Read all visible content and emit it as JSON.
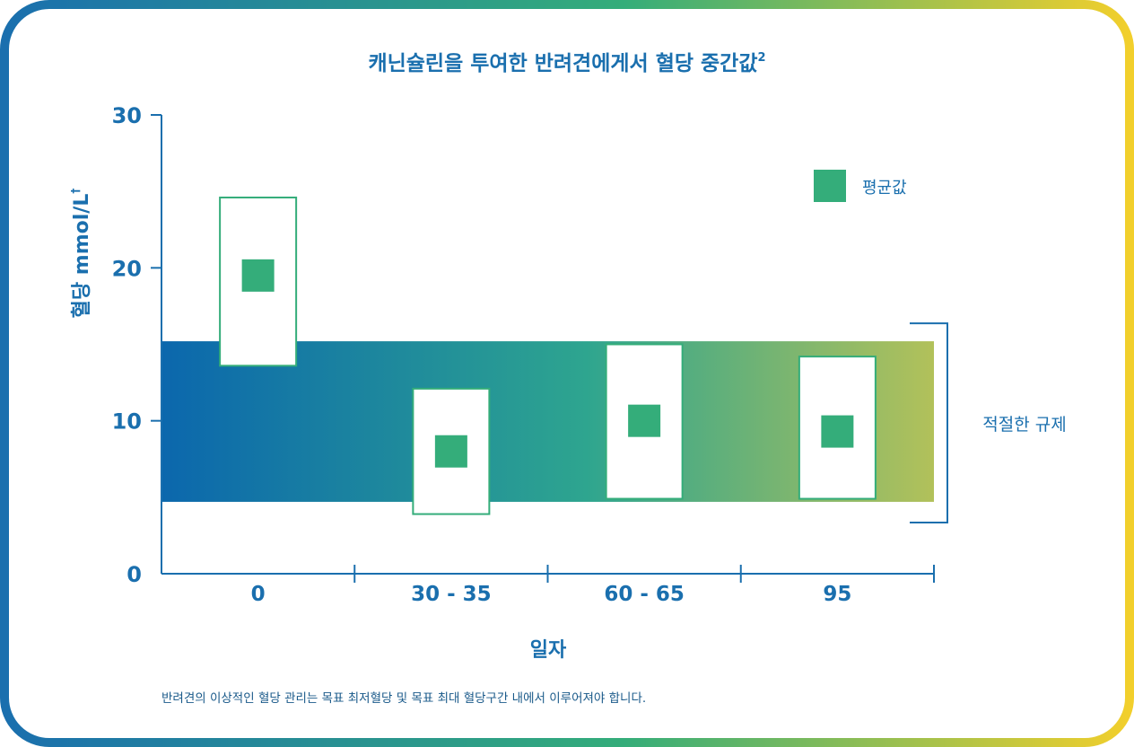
{
  "chart_data": {
    "type": "range-box",
    "title": "캐닌슐린을 투여한 반려견에게서 혈당 중간값",
    "title_superscript": "2",
    "ylabel": "혈당 mmol/L",
    "ylabel_superscript": "†",
    "xlabel": "일자",
    "ylim": [
      0,
      30
    ],
    "yticks": [
      "0",
      "10",
      "20",
      "30"
    ],
    "categories": [
      "0",
      "30 - 35",
      "60 - 65",
      "95"
    ],
    "series": [
      {
        "name": "평균값",
        "mean": [
          19.5,
          8.0,
          10.0,
          9.3
        ],
        "low": [
          13.6,
          3.9,
          4.9,
          4.9
        ],
        "high": [
          24.6,
          12.1,
          15.0,
          14.2
        ]
      }
    ],
    "target_range": {
      "label": "적절한 규제",
      "low": 4.7,
      "high": 15.2
    },
    "legend_position": "top-right",
    "footnote": "반려견의 이상적인 혈당 관리는 목표 최저혈당 및 목표 최대 혈당구간 내에서 이루어져야 합니다.",
    "colors": {
      "axis": "#1a6fae",
      "text": "#1a6fae",
      "marker": "#34ad7a",
      "box_stroke": "#34ad7a",
      "band_start": "#0b67ad",
      "band_mid": "#2ea58f",
      "band_end": "#b2c15a",
      "frame_start": "#1a6fae",
      "frame_mid": "#34ad7a",
      "frame_end": "#f2cf2c"
    }
  }
}
